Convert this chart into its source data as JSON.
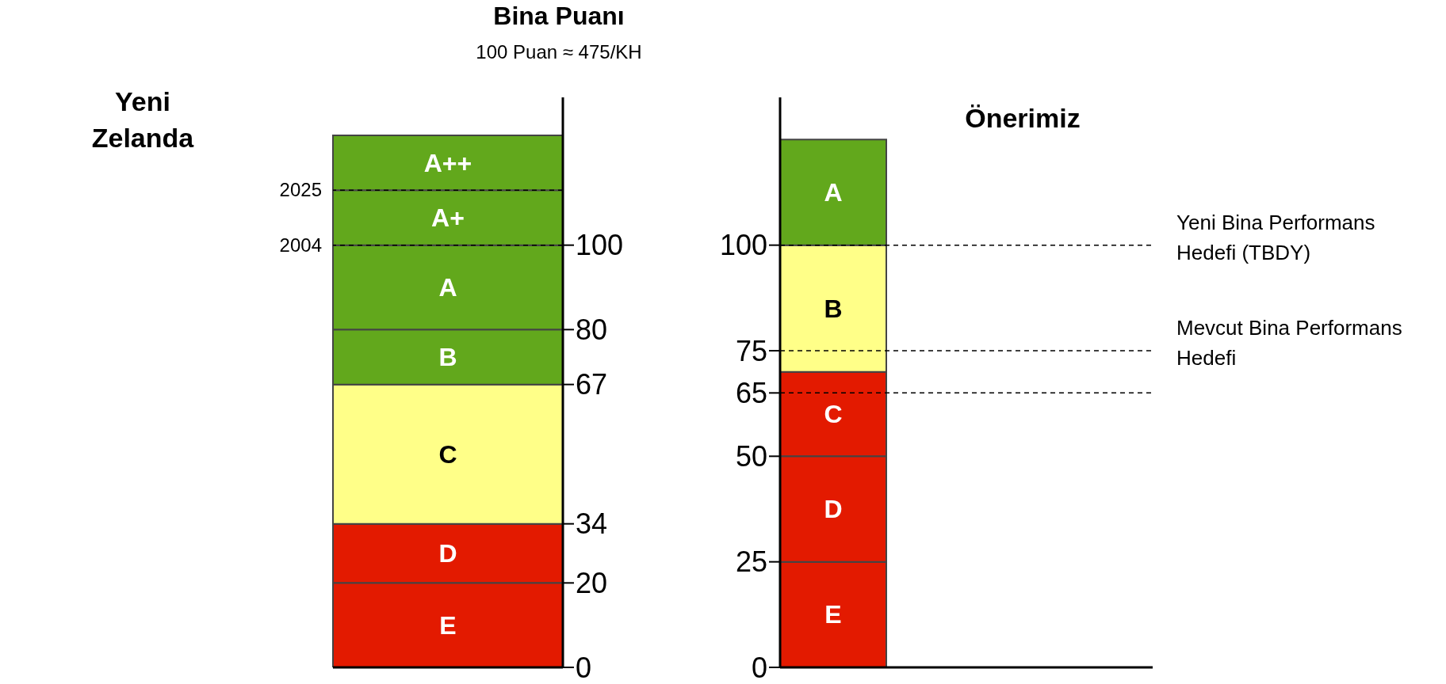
{
  "chart_data": [
    {
      "type": "bar",
      "title": "Bina Puanı",
      "subtitle": "100 Puan ≈ 475/KH",
      "annotations": [
        "Yeni Zelanda",
        "2004",
        "2025"
      ],
      "categories": [
        null
      ],
      "stacked": true,
      "ylim": [
        0,
        135
      ],
      "yticks": [
        0,
        20,
        34,
        67,
        80,
        100
      ],
      "tick_labels": "y",
      "series": [
        {
          "name": "E",
          "color": "#e31a00",
          "values": [
            20
          ]
        },
        {
          "name": "D",
          "color": "#e31a00",
          "values": [
            14
          ]
        },
        {
          "name": "C",
          "color": "#ffff88",
          "values": [
            33
          ]
        },
        {
          "name": "B",
          "color": "#62a81c",
          "values": [
            13
          ]
        },
        {
          "name": "A",
          "color": "#62a81c",
          "values": [
            20
          ]
        },
        {
          "name": "A+",
          "color": "#62a81c",
          "values": [
            13
          ]
        },
        {
          "name": "A++",
          "color": "#62a81c",
          "values": [
            13
          ]
        }
      ],
      "ref_lines": [
        {
          "axis": "y",
          "value": 100,
          "line_style": "dashed"
        },
        {
          "axis": "y",
          "value": 113,
          "line_style": "dashed"
        }
      ]
    },
    {
      "type": "bar",
      "title": "Önerimiz",
      "categories": [
        null
      ],
      "stacked": true,
      "ylim": [
        0,
        135
      ],
      "yticks": [
        0,
        25,
        50,
        65,
        75,
        100
      ],
      "tick_labels": "y",
      "series": [
        {
          "name": "E",
          "color": "#e31a00",
          "values": [
            25
          ]
        },
        {
          "name": "D",
          "color": "#e31a00",
          "values": [
            25
          ]
        },
        {
          "name": "C",
          "color": "#e31a00",
          "values": [
            20
          ]
        },
        {
          "name": "B",
          "color": "#ffff88",
          "values": [
            30
          ]
        },
        {
          "name": "A",
          "color": "#62a81c",
          "values": [
            25
          ]
        }
      ],
      "ref_lines": [
        {
          "axis": "y",
          "value": 100,
          "label": "Yeni Bina Performans Hedefi (TBDY)",
          "line_style": "dashed"
        },
        {
          "axis": "y",
          "value": 75,
          "label": "Mevcut Bina Performans Hedefi",
          "line_style": "dashed"
        },
        {
          "axis": "y",
          "value": 65,
          "label": null,
          "line_style": "dashed"
        }
      ]
    }
  ]
}
